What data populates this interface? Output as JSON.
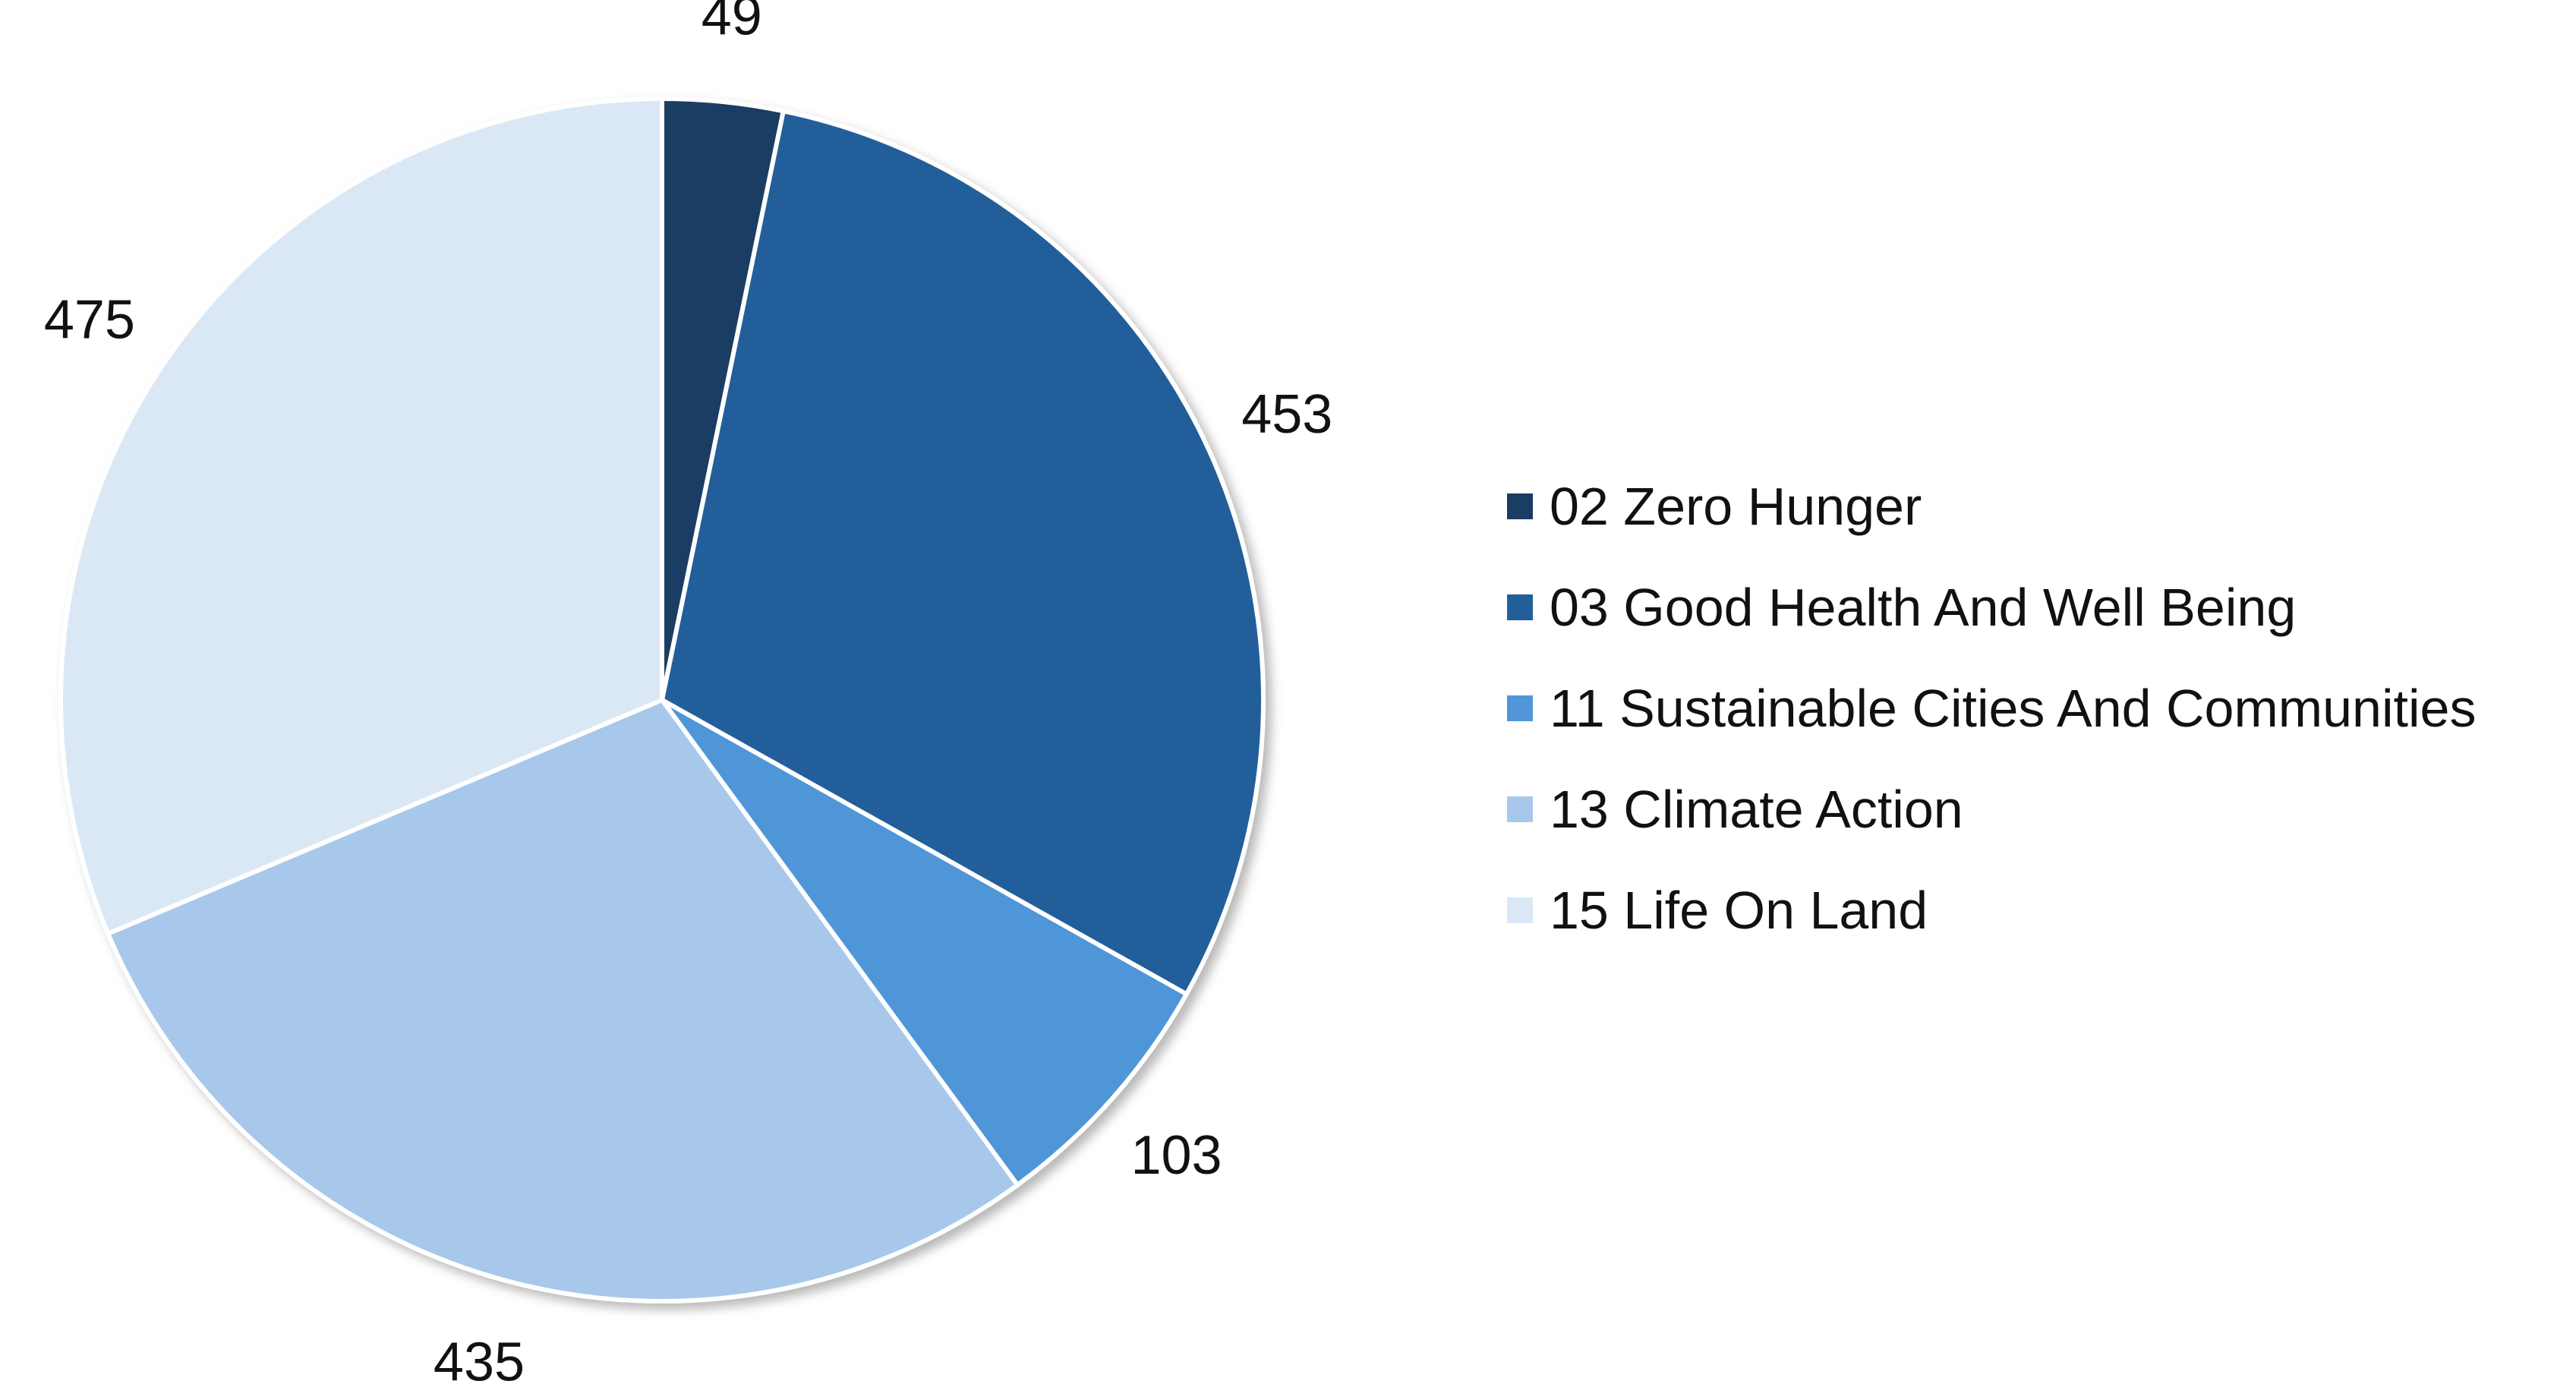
{
  "chart_data": {
    "type": "pie",
    "title": "",
    "legend_position": "right",
    "categories": [
      "02 Zero Hunger",
      "03 Good Health And Well Being",
      "11 Sustainable Cities And Communities",
      "13 Climate Action",
      "15 Life On Land"
    ],
    "values": [
      49,
      453,
      103,
      435,
      475
    ],
    "labels": [
      "49",
      "453",
      "103",
      "435",
      "475"
    ],
    "colors": [
      "#1b3c63",
      "#225f9a",
      "#5096d8",
      "#a7c8ea",
      "#dae8f6"
    ]
  }
}
